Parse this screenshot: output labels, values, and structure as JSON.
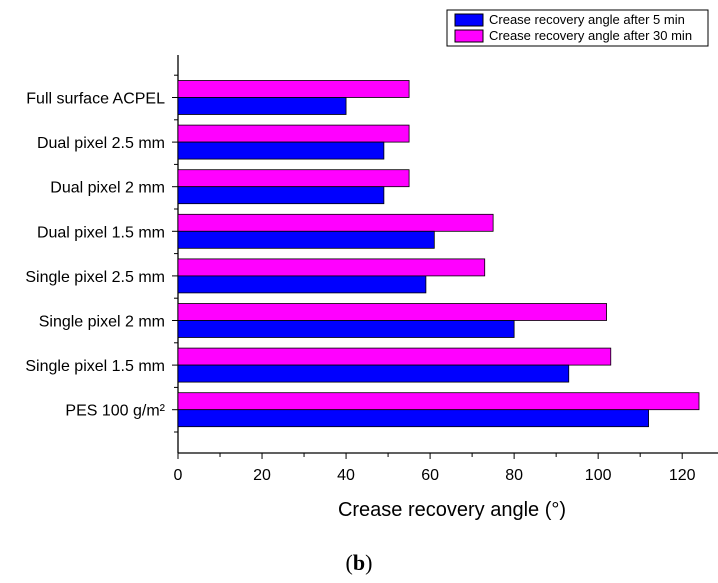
{
  "caption": {
    "open": "(",
    "letter": "b",
    "close": ")"
  },
  "chart_data": {
    "type": "bar",
    "orientation": "horizontal",
    "categories": [
      "Full surface ACPEL",
      "Dual pixel 2.5 mm",
      "Dual pixel 2 mm",
      "Dual pixel 1.5 mm",
      "Single pixel 2.5 mm",
      "Single pixel 2 mm",
      "Single pixel 1.5 mm",
      "PES 100 g/m²"
    ],
    "series": [
      {
        "name": "Crease recovery angle after 5 min",
        "color": "#0000ff",
        "values": [
          40,
          49,
          49,
          61,
          59,
          80,
          93,
          112
        ]
      },
      {
        "name": "Crease recovery angle after 30 min",
        "color": "#ff00ff",
        "values": [
          55,
          55,
          55,
          75,
          73,
          102,
          103,
          124
        ]
      }
    ],
    "xlabel": "Crease recovery angle (°)",
    "ylabel": "",
    "xlim": [
      0,
      127
    ],
    "xticks": [
      0,
      20,
      40,
      60,
      80,
      100,
      120
    ],
    "legend_position": "top-right",
    "grid": false
  }
}
